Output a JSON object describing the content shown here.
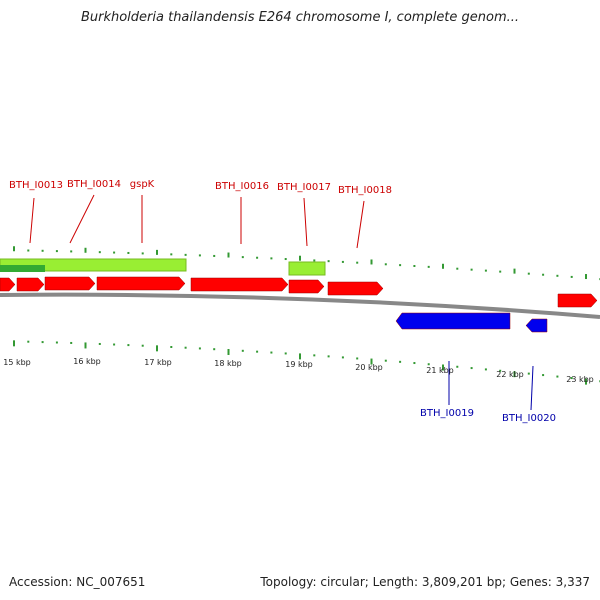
{
  "title": "Burkholderia thailandensis E264 chromosome I, complete genom...",
  "footer": {
    "accession": "Accession: NC_007651",
    "summary": "Topology: circular; Length: 3,809,201 bp; Genes: 3,337"
  },
  "colors": {
    "forward_gene": "#ff0000",
    "reverse_gene": "#0000ee",
    "forward_label": "#cc0000",
    "reverse_label": "#0000aa",
    "feature_bar": "#99ee33",
    "feature_bar_dark": "#33aa33",
    "tick": "#339933",
    "backbone": "#888888"
  },
  "axis_labels": [
    "15 kbp",
    "16 kbp",
    "17 kbp",
    "18 kbp",
    "19 kbp",
    "20 kbp",
    "21 kbp",
    "22 kbp",
    "23 kbp"
  ],
  "forward_gene_labels": [
    "BTH_I0013",
    "BTH_I0014",
    "gspK",
    "BTH_I0016",
    "BTH_I0017",
    "BTH_I0018"
  ],
  "reverse_gene_labels": [
    "BTH_I0019",
    "BTH_I0020"
  ]
}
